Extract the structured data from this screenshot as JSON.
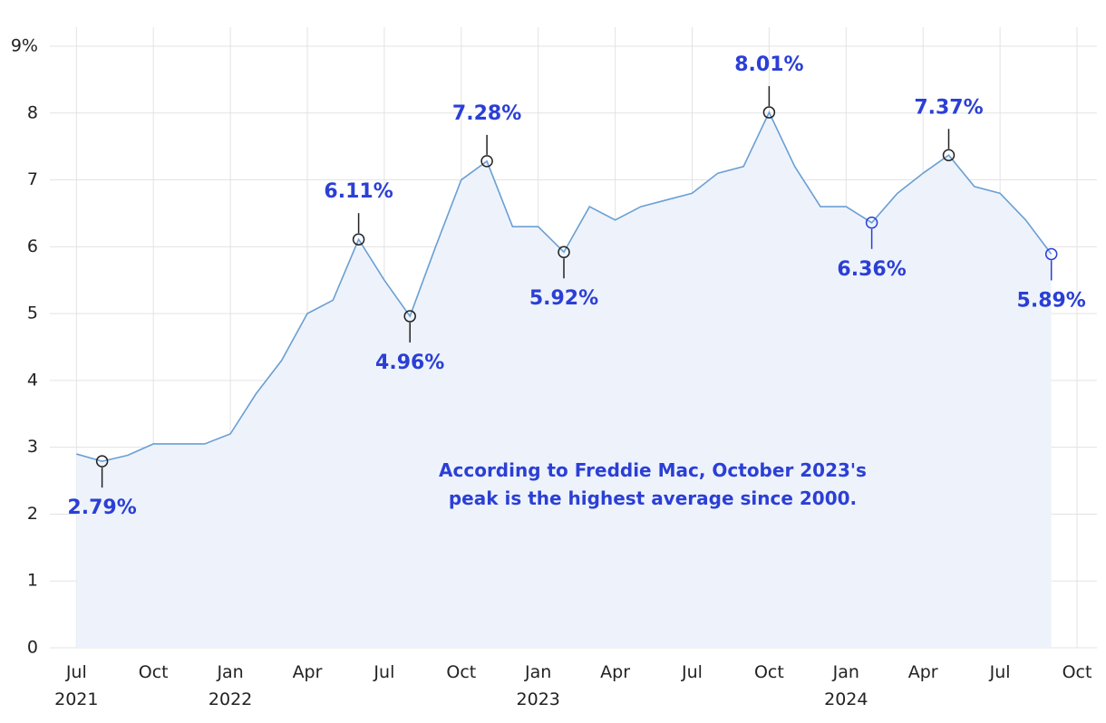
{
  "chart_data": {
    "type": "line",
    "x": [
      "2021-07",
      "2021-08",
      "2021-09",
      "2021-10",
      "2021-11",
      "2021-12",
      "2022-01",
      "2022-02",
      "2022-03",
      "2022-04",
      "2022-05",
      "2022-06",
      "2022-07",
      "2022-08",
      "2022-09",
      "2022-10",
      "2022-11",
      "2022-12",
      "2023-01",
      "2023-02",
      "2023-03",
      "2023-04",
      "2023-05",
      "2023-06",
      "2023-07",
      "2023-08",
      "2023-09",
      "2023-10",
      "2023-11",
      "2023-12",
      "2024-01",
      "2024-02",
      "2024-03",
      "2024-04",
      "2024-05",
      "2024-06",
      "2024-07",
      "2024-08",
      "2024-09"
    ],
    "series": [
      {
        "color": "#6a9fd4",
        "fill": "#eef3fb",
        "values": [
          2.9,
          2.79,
          2.88,
          3.05,
          3.05,
          3.05,
          3.2,
          3.8,
          4.3,
          5.0,
          5.2,
          6.11,
          5.5,
          4.96,
          6.0,
          7.0,
          7.28,
          6.3,
          6.3,
          5.92,
          6.6,
          6.4,
          6.6,
          6.7,
          6.8,
          7.1,
          7.2,
          8.01,
          7.2,
          6.6,
          6.6,
          6.36,
          6.8,
          7.1,
          7.37,
          6.9,
          6.8,
          6.4,
          5.89
        ]
      }
    ],
    "xlim": [
      "2021-06",
      "2024-10"
    ],
    "xticks": [
      {
        "value": "2021-07",
        "label": "Jul 2021"
      },
      {
        "value": "2021-10",
        "label": "Oct"
      },
      {
        "value": "2022-01",
        "label": "Jan 2022"
      },
      {
        "value": "2022-04",
        "label": "Apr"
      },
      {
        "value": "2022-07",
        "label": "Jul"
      },
      {
        "value": "2022-10",
        "label": "Oct"
      },
      {
        "value": "2023-01",
        "label": "Jan 2023"
      },
      {
        "value": "2023-04",
        "label": "Apr"
      },
      {
        "value": "2023-07",
        "label": "Jul"
      },
      {
        "value": "2023-10",
        "label": "Oct"
      },
      {
        "value": "2024-01",
        "label": "Jan 2024"
      },
      {
        "value": "2024-04",
        "label": "Apr"
      },
      {
        "value": "2024-07",
        "label": "Jul"
      },
      {
        "value": "2024-10",
        "label": "Oct"
      }
    ],
    "ylim": [
      0,
      9
    ],
    "yticks": [
      0,
      1,
      2,
      3,
      4,
      5,
      6,
      7,
      8,
      {
        "value": 9,
        "label": "9%"
      }
    ],
    "grid": true,
    "annotations": [
      {
        "x": "2021-08",
        "value": 2.79,
        "label": "2.79%",
        "color": "#222222"
      },
      {
        "x": "2022-06",
        "value": 6.11,
        "label": "6.11%",
        "color": "#222222"
      },
      {
        "x": "2022-08",
        "value": 4.96,
        "label": "4.96%",
        "color": "#222222"
      },
      {
        "x": "2022-11",
        "value": 7.28,
        "label": "7.28%",
        "color": "#222222"
      },
      {
        "x": "2023-02",
        "value": 5.92,
        "label": "5.92%",
        "color": "#222222"
      },
      {
        "x": "2023-10",
        "value": 8.01,
        "label": "8.01%",
        "color": "#222222"
      },
      {
        "x": "2024-02",
        "value": 6.36,
        "label": "6.36%",
        "color": "#2b3fd6"
      },
      {
        "x": "2024-05",
        "value": 7.37,
        "label": "7.37%",
        "color": "#222222"
      },
      {
        "x": "2024-09",
        "value": 5.89,
        "label": "5.89%",
        "color": "#2b3fd6"
      }
    ],
    "note": "According to Freddie Mac, October 2023's peak is the highest average since 2000."
  }
}
